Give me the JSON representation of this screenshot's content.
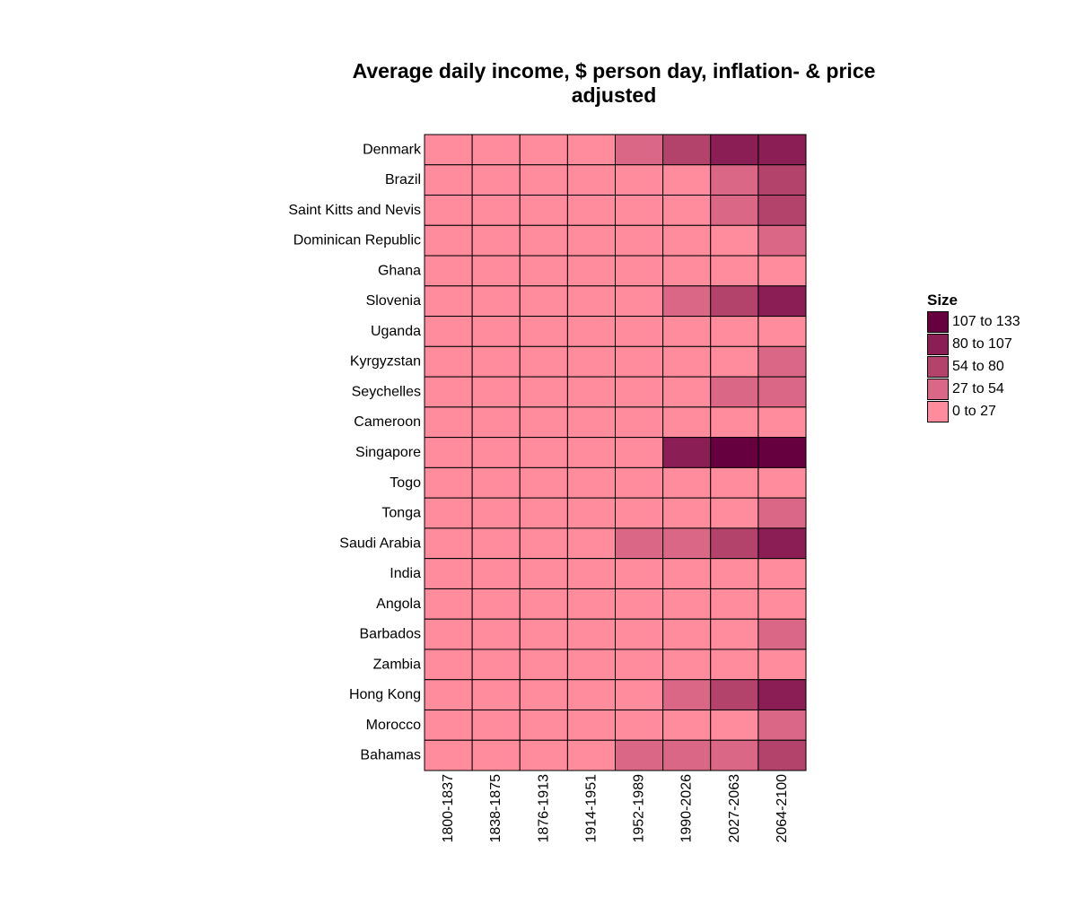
{
  "chart_data": {
    "type": "heatmap",
    "title_lines": [
      "Average daily income, $ person day, inflation- & price",
      "adjusted"
    ],
    "x_categories": [
      "1800-1837",
      "1838-1875",
      "1876-1913",
      "1914-1951",
      "1952-1989",
      "1990-2026",
      "2027-2063",
      "2064-2100"
    ],
    "y_categories": [
      "Denmark",
      "Brazil",
      "Saint Kitts and Nevis",
      "Dominican Republic",
      "Ghana",
      "Slovenia",
      "Uganda",
      "Kyrgyzstan",
      "Seychelles",
      "Cameroon",
      "Singapore",
      "Togo",
      "Tonga",
      "Saudi Arabia",
      "India",
      "Angola",
      "Barbados",
      "Zambia",
      "Hong Kong",
      "Morocco",
      "Bahamas"
    ],
    "values": [
      [
        0,
        0,
        0,
        0,
        1,
        2,
        3,
        3
      ],
      [
        0,
        0,
        0,
        0,
        0,
        0,
        1,
        2
      ],
      [
        0,
        0,
        0,
        0,
        0,
        0,
        1,
        2
      ],
      [
        0,
        0,
        0,
        0,
        0,
        0,
        0,
        1
      ],
      [
        0,
        0,
        0,
        0,
        0,
        0,
        0,
        0
      ],
      [
        0,
        0,
        0,
        0,
        0,
        1,
        2,
        3
      ],
      [
        0,
        0,
        0,
        0,
        0,
        0,
        0,
        0
      ],
      [
        0,
        0,
        0,
        0,
        0,
        0,
        0,
        1
      ],
      [
        0,
        0,
        0,
        0,
        0,
        0,
        1,
        1
      ],
      [
        0,
        0,
        0,
        0,
        0,
        0,
        0,
        0
      ],
      [
        0,
        0,
        0,
        0,
        0,
        3,
        4,
        4
      ],
      [
        0,
        0,
        0,
        0,
        0,
        0,
        0,
        0
      ],
      [
        0,
        0,
        0,
        0,
        0,
        0,
        0,
        1
      ],
      [
        0,
        0,
        0,
        0,
        1,
        1,
        2,
        3
      ],
      [
        0,
        0,
        0,
        0,
        0,
        0,
        0,
        0
      ],
      [
        0,
        0,
        0,
        0,
        0,
        0,
        0,
        0
      ],
      [
        0,
        0,
        0,
        0,
        0,
        0,
        0,
        1
      ],
      [
        0,
        0,
        0,
        0,
        0,
        0,
        0,
        0
      ],
      [
        0,
        0,
        0,
        0,
        0,
        1,
        2,
        3
      ],
      [
        0,
        0,
        0,
        0,
        0,
        0,
        0,
        1
      ],
      [
        0,
        0,
        0,
        0,
        1,
        1,
        1,
        2
      ]
    ],
    "legend": {
      "title": "Size",
      "placement": "right",
      "items": [
        {
          "label": "107 to 133",
          "color": "#67003F"
        },
        {
          "label": "80 to 107",
          "color": "#8A1E55"
        },
        {
          "label": "54 to 80",
          "color": "#B3436B"
        },
        {
          "label": "27 to 54",
          "color": "#D96785"
        },
        {
          "label": "0 to 27",
          "color": "#FF8C9C"
        }
      ]
    },
    "bin_colors": [
      "#FF8C9C",
      "#D96785",
      "#B3436B",
      "#8A1E55",
      "#67003F"
    ],
    "grid": false
  }
}
